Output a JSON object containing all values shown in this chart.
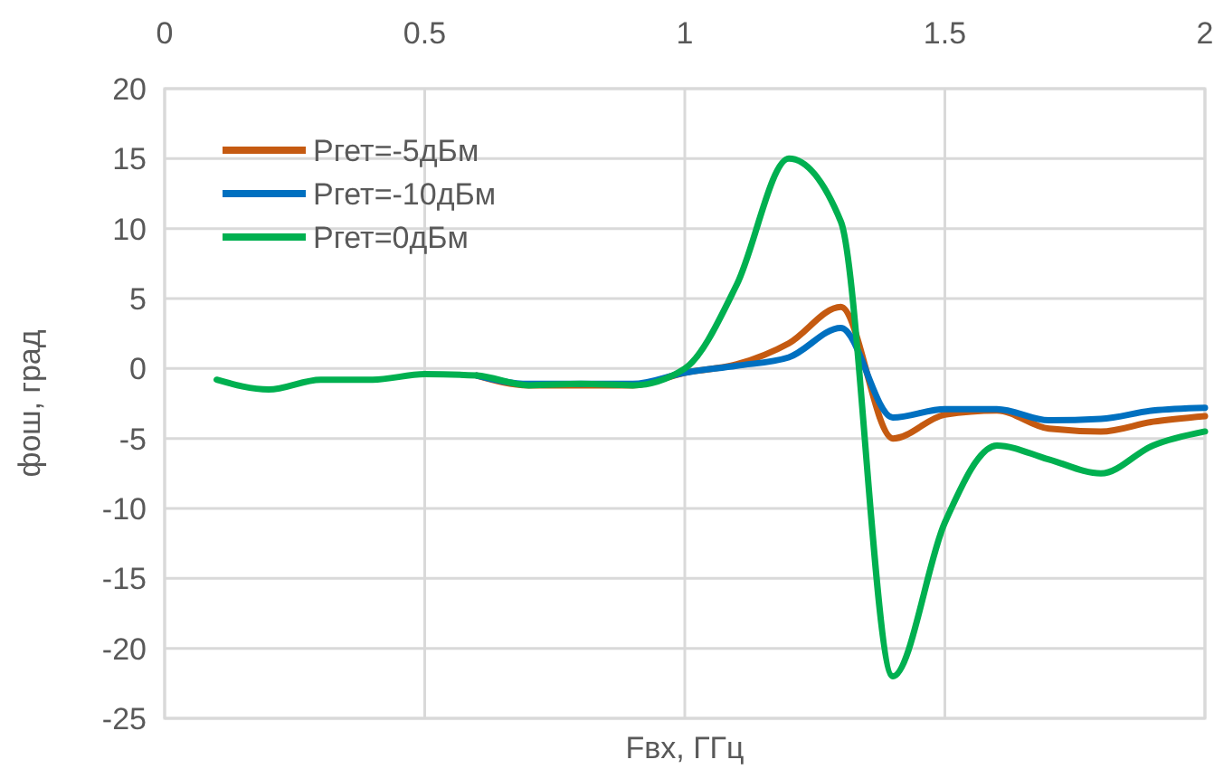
{
  "chart_data": {
    "type": "line",
    "xlabel": "Fвх, ГГц",
    "ylabel": "фош, град",
    "x": [
      0.1,
      0.2,
      0.3,
      0.4,
      0.5,
      0.6,
      0.7,
      0.8,
      0.9,
      1.0,
      1.1,
      1.2,
      1.3,
      1.4,
      1.5,
      1.6,
      1.7,
      1.8,
      1.9,
      2.0
    ],
    "series": [
      {
        "name": "Pгет=-5дБм",
        "color": "#c55a11",
        "values": [
          null,
          null,
          null,
          null,
          null,
          -0.5,
          -1.2,
          -1.2,
          -1.2,
          -0.3,
          0.3,
          1.8,
          4.4,
          -5,
          -3.3,
          -3,
          -4.3,
          -4.5,
          -3.8,
          -3.4
        ]
      },
      {
        "name": "Pгет=-10дБм",
        "color": "#0070c0",
        "values": [
          null,
          null,
          null,
          null,
          null,
          -0.5,
          -1.1,
          -1.1,
          -1.1,
          -0.3,
          0.2,
          0.8,
          2.9,
          -3.5,
          -2.9,
          -2.9,
          -3.7,
          -3.6,
          -3,
          -2.8
        ]
      },
      {
        "name": "Pгет=0дБм",
        "color": "#00b050",
        "values": [
          -0.8,
          -1.5,
          -0.8,
          -0.8,
          -0.4,
          -0.5,
          -1.2,
          -1.1,
          -1.2,
          0,
          6,
          15,
          10.5,
          -22,
          -11,
          -5.5,
          -6.5,
          -7.5,
          -5.5,
          -4.5
        ]
      }
    ],
    "xlim": [
      0,
      2
    ],
    "xticks": [
      0,
      0.5,
      1,
      1.5,
      2
    ],
    "ylim": [
      -25,
      20
    ],
    "yticks": [
      -25,
      -20,
      -15,
      -10,
      -5,
      0,
      5,
      10,
      15,
      20
    ],
    "grid": true,
    "legend": "top left",
    "marker": "none",
    "line_style": "solid"
  }
}
